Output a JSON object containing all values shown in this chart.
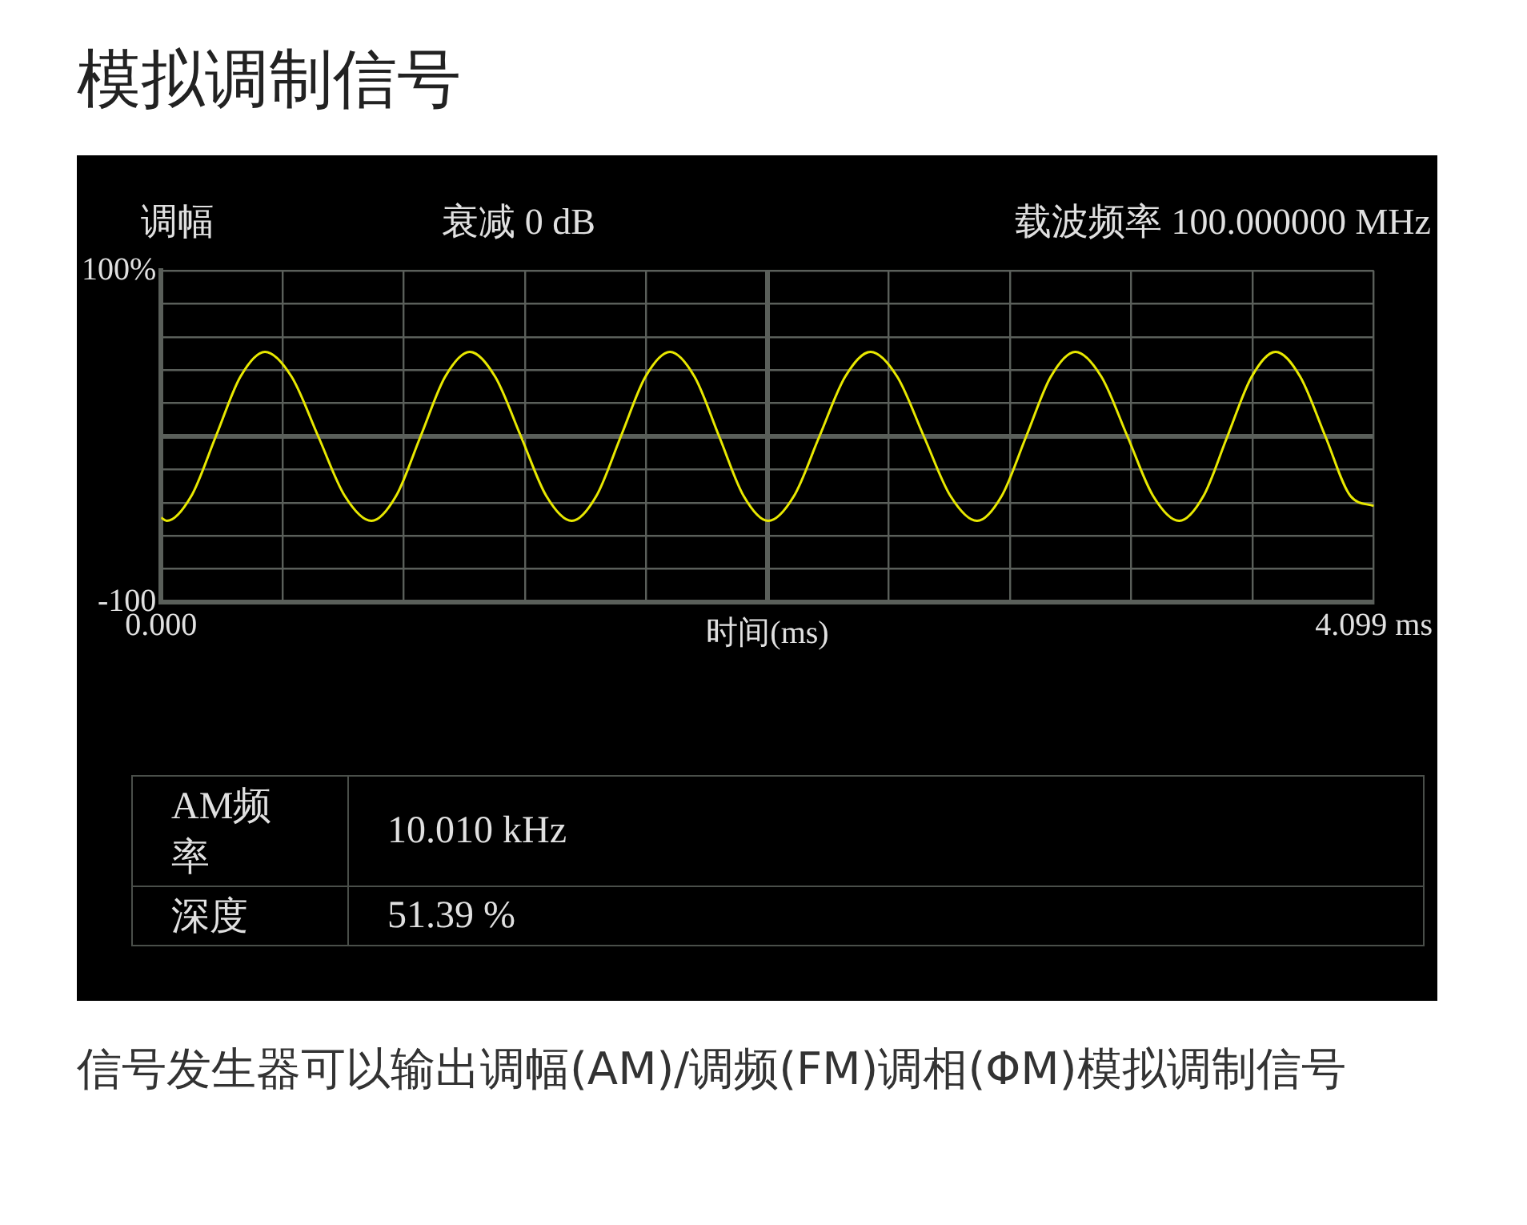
{
  "chart_data": {
    "type": "line",
    "title": "模拟调制信号",
    "xlabel": "时间(ms)",
    "annotations": [
      "调幅",
      "衰减 0 dB",
      "载波频率 100.000000 MHz",
      "AM频率",
      "10.010 kHz",
      "深度",
      "51.39 %",
      "信号发生器可以输出调幅(AM)/调频(FM)调相(ΦM)模拟调制信号"
    ],
    "series": [
      {
        "color": "#e8e800",
        "x": [
          0,
          0.019,
          0.102,
          0.185,
          0.268,
          0.351,
          0.441,
          0.531,
          0.621,
          0.711,
          0.794,
          0.877,
          0.96,
          1.043,
          1.129,
          1.216,
          1.302,
          1.388,
          1.471,
          1.554,
          1.637,
          1.72,
          1.803,
          1.886,
          1.969,
          2.052,
          2.139,
          2.225,
          2.312,
          2.398,
          2.488,
          2.578,
          2.668,
          2.758,
          2.841,
          2.924,
          3.007,
          3.09,
          3.178,
          3.266,
          3.353,
          3.441,
          3.523,
          3.604,
          3.686,
          3.767,
          3.85,
          3.935,
          4.02,
          4.099
        ],
        "values": [
          -49,
          -51,
          -36,
          0,
          36,
          51,
          36,
          0,
          -36,
          -51,
          -36,
          0,
          36,
          51,
          36,
          0,
          -36,
          -51,
          -36,
          0,
          36,
          51,
          36,
          0,
          -36,
          -51,
          -36,
          0,
          36,
          51,
          36,
          0,
          -36,
          -51,
          -36,
          0,
          36,
          51,
          36,
          0,
          -36,
          -51,
          -36,
          0,
          36,
          51,
          36,
          0,
          -36,
          -42
        ]
      }
    ],
    "xlim": [
      0,
      4.099
    ],
    "ylim": [
      -100,
      100
    ],
    "xticks": [
      {
        "value": 0,
        "label": "0.000"
      },
      {
        "value": 0.4099,
        "label": null
      },
      {
        "value": 0.8198,
        "label": null
      },
      {
        "value": 1.2297,
        "label": null
      },
      {
        "value": 1.6396,
        "label": null
      },
      {
        "value": 2.0495,
        "label": null
      },
      {
        "value": 2.4594,
        "label": null
      },
      {
        "value": 2.8693,
        "label": null
      },
      {
        "value": 3.2792,
        "label": null
      },
      {
        "value": 3.6891,
        "label": null
      },
      {
        "value": 4.099,
        "label": "4.099 ms"
      }
    ],
    "yticks": [
      {
        "value": -100,
        "label": "-100"
      },
      {
        "value": -80,
        "label": null
      },
      {
        "value": -60,
        "label": null
      },
      {
        "value": -40,
        "label": null
      },
      {
        "value": -20,
        "label": null
      },
      {
        "value": 0,
        "label": null
      },
      {
        "value": 20,
        "label": null
      },
      {
        "value": 40,
        "label": null
      },
      {
        "value": 60,
        "label": null
      },
      {
        "value": 80,
        "label": null
      },
      {
        "value": 100,
        "label": "100%"
      }
    ],
    "grid": true,
    "marker": "none",
    "line_style": "solid",
    "legend": false
  }
}
